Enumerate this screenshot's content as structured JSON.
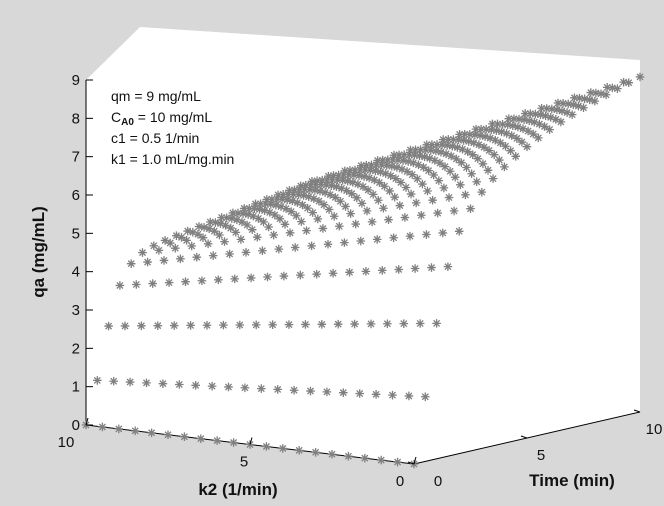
{
  "chart_data": {
    "type": "scatter3d",
    "title": "",
    "marker": "asterisk",
    "marker_color": "#808080",
    "background_color": "#d8d8d8",
    "plot_face_color": "#ffffff",
    "grid": false,
    "x_axis": {
      "label": "k2 (1/min)",
      "range": [
        0,
        10
      ],
      "ticks": [
        "10",
        "5",
        "0"
      ]
    },
    "y_axis": {
      "label": "Time (min)",
      "range": [
        0,
        10
      ],
      "ticks": [
        "0",
        "5",
        "10"
      ]
    },
    "z_axis": {
      "label": "qa (mg/mL)",
      "range": [
        0,
        9
      ],
      "ticks": [
        "0",
        "1",
        "2",
        "3",
        "4",
        "5",
        "6",
        "7",
        "8",
        "9"
      ]
    },
    "parameters": [
      {
        "name": "qm",
        "sub": "",
        "text": " =  9 mg/mL"
      },
      {
        "name": "C",
        "sub": "A0",
        "text": " = 10 mg/mL"
      },
      {
        "name": "c1",
        "sub": "",
        "text": "  = 0.5 1/min"
      },
      {
        "name": "k1",
        "sub": "",
        "text": "  = 1.0 mL/mg.min"
      }
    ],
    "model_constants": {
      "qm": 9,
      "CA0": 10,
      "c1": 0.5,
      "k1": 1.0
    },
    "k2_values": [
      0,
      0.5,
      1,
      1.5,
      2,
      2.5,
      3,
      3.5,
      4,
      4.5,
      5,
      5.5,
      6,
      6.5,
      7,
      7.5,
      8,
      8.5,
      9,
      9.5,
      10
    ],
    "time_values": [
      0,
      0.5,
      1,
      1.5,
      2,
      2.5,
      3,
      3.5,
      4,
      4.5,
      5,
      5.5,
      6,
      6.5,
      7,
      7.5,
      8,
      8.5,
      9,
      9.5,
      10
    ],
    "reference_values": [
      {
        "k2": 10,
        "time": 0,
        "qa": 0
      },
      {
        "k2": 10,
        "time": 1,
        "qa": 4.0
      },
      {
        "k2": 10,
        "time": 5,
        "qa": 5.0
      },
      {
        "k2": 5,
        "time": 5,
        "qa": 6.3
      },
      {
        "k2": 0,
        "time": 0,
        "qa": 0
      },
      {
        "k2": 0,
        "time": 3,
        "qa": 5.0
      },
      {
        "k2": 0,
        "time": 7,
        "qa": 8.0
      },
      {
        "k2": 0,
        "time": 10,
        "qa": 9.0
      }
    ]
  }
}
